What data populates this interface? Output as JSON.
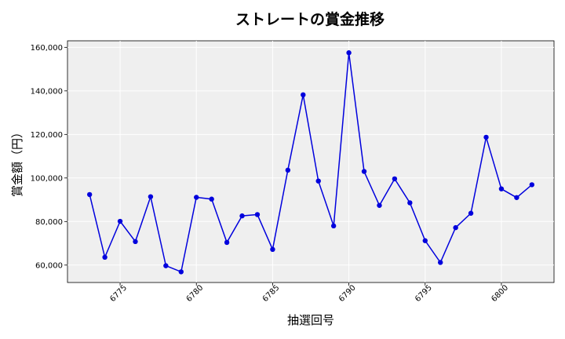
{
  "chart_data": {
    "type": "line",
    "title": "ストレートの賞金推移",
    "xlabel": "抽選回号",
    "ylabel": "賞金額（円）",
    "x": [
      6773,
      6774,
      6775,
      6776,
      6777,
      6778,
      6779,
      6780,
      6781,
      6782,
      6783,
      6784,
      6785,
      6786,
      6787,
      6788,
      6789,
      6790,
      6791,
      6792,
      6793,
      6794,
      6795,
      6796,
      6797,
      6798,
      6799,
      6800,
      6801,
      6802
    ],
    "series": [
      {
        "values": [
          92400,
          63600,
          80100,
          70800,
          91400,
          59700,
          56900,
          91100,
          90300,
          70400,
          82600,
          83200,
          67200,
          103600,
          138200,
          98600,
          78000,
          157500,
          103000,
          87400,
          99600,
          88600,
          71200,
          61200,
          77200,
          83800,
          118700,
          95000,
          91000,
          96900
        ],
        "color": "#0000dd"
      }
    ],
    "xticks": [
      6775,
      6780,
      6785,
      6790,
      6795,
      6800
    ],
    "yticks": [
      60000,
      80000,
      100000,
      120000,
      140000,
      160000
    ],
    "xlim": [
      6771.55,
      6803.45
    ],
    "ylim": [
      52000,
      163000
    ],
    "grid": true,
    "background": "#efefef",
    "legend": "none"
  }
}
